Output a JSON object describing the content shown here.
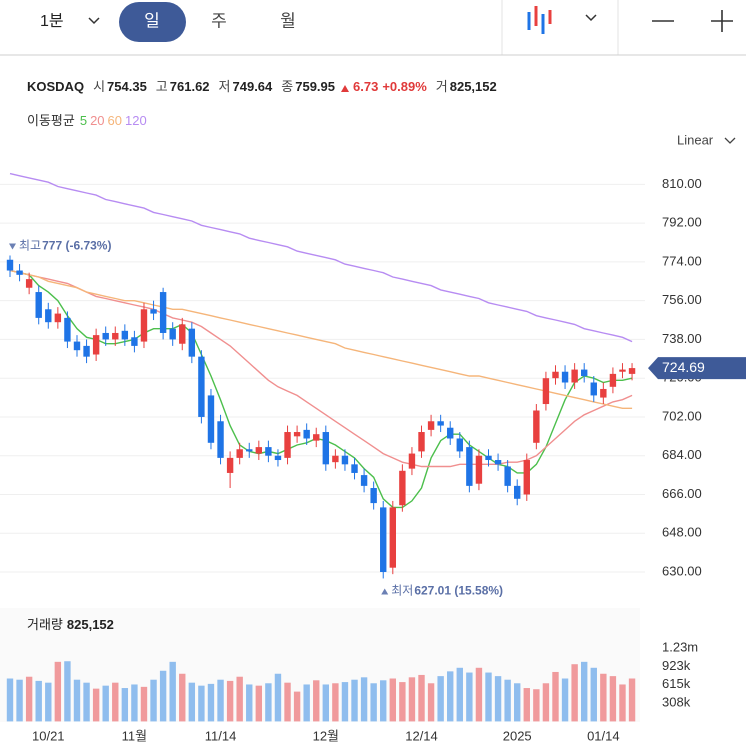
{
  "toolbar": {
    "interval": "1분",
    "tabs": [
      "일",
      "주",
      "월"
    ]
  },
  "header": {
    "symbol": "KOSDAQ",
    "fields": [
      {
        "label": "시",
        "value": "754.35"
      },
      {
        "label": "고",
        "value": "761.62"
      },
      {
        "label": "저",
        "value": "749.64"
      },
      {
        "label": "종",
        "value": "759.95"
      }
    ],
    "change": "6.73",
    "change_pct": "+0.89%",
    "volume_label": "거",
    "volume": "825,152"
  },
  "ma_label": "이동평균",
  "scale_mode": "Linear",
  "chart_data": {
    "type": "candlestick",
    "categories": [
      null,
      null,
      null,
      null,
      "10/21",
      null,
      null,
      null,
      null,
      null,
      null,
      null,
      null,
      "11월",
      null,
      null,
      null,
      null,
      null,
      null,
      null,
      null,
      "11/14",
      null,
      null,
      null,
      null,
      null,
      null,
      null,
      null,
      null,
      null,
      "12월",
      null,
      null,
      null,
      null,
      null,
      null,
      null,
      null,
      null,
      "12/14",
      null,
      null,
      null,
      null,
      null,
      null,
      null,
      null,
      null,
      "2025",
      null,
      null,
      null,
      null,
      null,
      null,
      null,
      null,
      "01/14",
      null,
      null,
      null
    ],
    "open": [
      775,
      770,
      762,
      760,
      752,
      746,
      748,
      737,
      735,
      731,
      741,
      738,
      742,
      739,
      737,
      752,
      760,
      743,
      736,
      743,
      730,
      712,
      700,
      676,
      683,
      687,
      685,
      688,
      684,
      683,
      693,
      696,
      691,
      695,
      681,
      684,
      680,
      675,
      669,
      660,
      632,
      661,
      678,
      686,
      696,
      700,
      697,
      692,
      688,
      671,
      684,
      682,
      679,
      670,
      666,
      690,
      708,
      720,
      723,
      718,
      724,
      718,
      711,
      716,
      723,
      722
    ],
    "high": [
      777,
      773,
      769,
      763,
      755,
      753,
      751,
      740,
      738,
      743,
      744,
      744,
      745,
      742,
      755,
      756,
      762,
      746,
      748,
      746,
      733,
      715,
      703,
      686,
      690,
      690,
      691,
      691,
      687,
      698,
      698,
      699,
      697,
      698,
      687,
      687,
      683,
      678,
      672,
      663,
      663,
      680,
      688,
      698,
      703,
      703,
      700,
      695,
      691,
      687,
      687,
      685,
      682,
      673,
      685,
      708,
      723,
      726,
      726,
      727,
      727,
      721,
      718,
      725,
      727,
      727
    ],
    "low": [
      767,
      765,
      759,
      745,
      743,
      743,
      734,
      730,
      727,
      728,
      735,
      735,
      735,
      732,
      734,
      747,
      738,
      735,
      733,
      727,
      699,
      687,
      680,
      669,
      680,
      683,
      682,
      681,
      679,
      680,
      690,
      689,
      688,
      677,
      678,
      677,
      673,
      667,
      659,
      627.01,
      629,
      658,
      675,
      683,
      693,
      695,
      689,
      683,
      667,
      668,
      679,
      677,
      667,
      661,
      663,
      687,
      705,
      717,
      715,
      715,
      718,
      709,
      708,
      713,
      720,
      719
    ],
    "close": [
      770,
      768,
      766,
      748,
      746,
      750,
      737,
      733,
      730,
      740,
      738,
      741,
      738,
      735,
      752,
      750,
      741,
      738,
      745,
      730,
      702,
      690,
      683,
      683,
      687,
      686,
      688,
      684,
      682,
      695,
      695,
      692,
      694,
      680,
      684,
      680,
      676,
      670,
      662,
      630,
      660,
      677,
      685,
      695,
      700,
      698,
      692,
      686,
      670,
      684,
      682,
      680,
      670,
      664,
      682,
      705,
      720,
      723,
      718,
      724,
      721,
      712,
      715,
      722,
      724,
      724.69
    ],
    "up_color": "#e8403f",
    "down_color": "#1f74e6",
    "ylim": [
      617,
      819
    ],
    "yticks": [
      {
        "value": 630,
        "label": "630.00"
      },
      {
        "value": 648,
        "label": "648.00"
      },
      {
        "value": 666,
        "label": "666.00"
      },
      {
        "value": 684,
        "label": "684.00"
      },
      {
        "value": 702,
        "label": "702.00"
      },
      {
        "value": 720,
        "label": "720.00"
      },
      {
        "value": 738,
        "label": "738.00"
      },
      {
        "value": 756,
        "label": "756.00"
      },
      {
        "value": 774,
        "label": "774.00"
      },
      {
        "value": 792,
        "label": "792.00"
      },
      {
        "value": 810,
        "label": "810.00"
      }
    ],
    "grid": true,
    "moving_averages": [
      {
        "name": "5",
        "color": "#4cbf4c",
        "values": [
          770,
          769,
          768,
          763,
          760,
          756,
          749,
          743,
          739,
          738,
          736,
          736,
          737,
          738,
          741,
          743,
          743,
          743,
          745,
          741,
          731,
          721,
          710,
          698,
          689,
          686,
          685,
          686,
          685,
          687,
          689,
          690,
          692,
          691,
          689,
          686,
          683,
          678,
          674,
          664,
          660,
          660,
          663,
          669,
          683,
          691,
          694,
          694,
          689,
          686,
          683,
          680,
          679,
          676,
          676,
          680,
          688,
          699,
          710,
          718,
          721,
          720,
          718,
          719,
          719,
          720
        ]
      },
      {
        "name": "20",
        "color": "#f08f8f",
        "values": [
          770,
          769,
          768,
          767,
          766,
          765,
          764,
          762,
          760,
          758,
          757,
          756,
          755,
          754,
          753,
          752,
          750,
          748,
          747,
          746,
          744,
          741,
          738,
          735,
          731,
          727,
          723,
          719,
          716,
          714,
          712,
          709,
          706,
          703,
          700,
          697,
          694,
          691,
          688,
          685,
          683,
          681,
          680,
          679,
          679,
          679,
          679,
          680,
          680,
          680,
          680,
          680,
          681,
          681,
          682,
          684,
          688,
          692,
          696,
          700,
          703,
          705,
          707,
          709,
          710,
          712
        ]
      },
      {
        "name": "60",
        "color": "#f5b57a",
        "values": [
          770,
          769,
          768,
          767,
          765,
          764,
          763,
          762,
          760,
          759,
          758,
          757,
          756,
          756,
          755,
          754,
          753,
          752,
          752,
          751,
          750,
          749,
          748,
          747,
          746,
          745,
          744,
          743,
          742,
          741,
          740,
          739,
          738,
          737,
          736,
          734,
          733,
          732,
          731,
          730,
          729,
          728,
          727,
          726,
          725,
          724,
          723,
          722,
          721,
          721,
          720,
          719,
          718,
          717,
          716,
          715,
          714,
          713,
          712,
          711,
          710,
          709,
          708,
          707,
          706,
          706
        ]
      },
      {
        "name": "120",
        "color": "#b78cf2",
        "values": [
          815,
          814,
          813,
          812,
          811,
          809,
          808,
          807,
          806,
          805,
          803,
          802,
          801,
          800,
          799,
          797,
          796,
          795,
          794,
          793,
          791,
          790,
          789,
          788,
          787,
          785,
          784,
          783,
          782,
          781,
          779,
          778,
          777,
          776,
          775,
          773,
          772,
          771,
          770,
          769,
          767,
          766,
          765,
          764,
          763,
          761,
          760,
          759,
          758,
          757,
          755,
          754,
          753,
          752,
          751,
          749,
          748,
          747,
          746,
          745,
          743,
          742,
          741,
          740,
          739,
          737
        ]
      }
    ],
    "annotations": [
      {
        "text": "최고",
        "value": 777,
        "label": "777 (-6.73%)",
        "index": 0,
        "dir": "down"
      },
      {
        "text": "최저",
        "value": 627.01,
        "label": "627.01 (15.58%)",
        "index": 39,
        "dir": "up"
      }
    ],
    "volume": {
      "title": "거래량",
      "total": "825,152",
      "values": [
        720000,
        700000,
        750000,
        680000,
        650000,
        1000000,
        1010000,
        700000,
        650000,
        550000,
        600000,
        650000,
        560000,
        620000,
        580000,
        700000,
        850000,
        1000000,
        800000,
        650000,
        600000,
        630000,
        700000,
        680000,
        750000,
        620000,
        600000,
        640000,
        800000,
        650000,
        500000,
        620000,
        690000,
        620000,
        640000,
        660000,
        700000,
        740000,
        640000,
        690000,
        720000,
        660000,
        740000,
        780000,
        640000,
        760000,
        840000,
        900000,
        820000,
        900000,
        820000,
        760000,
        700000,
        640000,
        560000,
        540000,
        640000,
        830000,
        720000,
        960000,
        1000000,
        900000,
        800000,
        760000,
        620000,
        720000
      ],
      "up_color": "#f09a9c",
      "down_color": "#8fbdee",
      "ylim": [
        0,
        1870000
      ],
      "yticks": [
        {
          "value": 308000,
          "label": "308k"
        },
        {
          "value": 615000,
          "label": "615k"
        },
        {
          "value": 923000,
          "label": "923k"
        },
        {
          "value": 1230000,
          "label": "1.23m"
        }
      ]
    }
  }
}
